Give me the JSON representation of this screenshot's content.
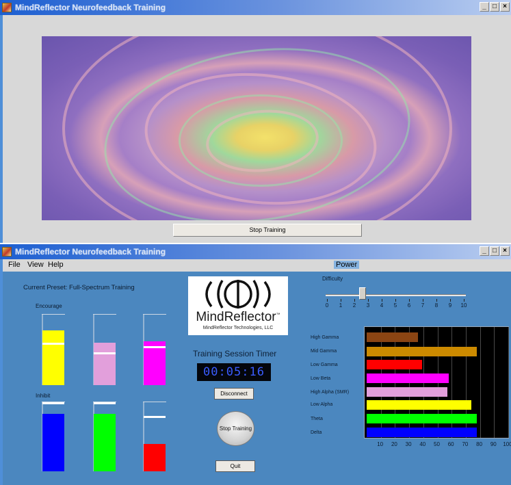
{
  "window_top": {
    "title": "MindReflector Neurofeedback Training",
    "stop_label": "Stop Training"
  },
  "window_bottom": {
    "title": "MindReflector Neurofeedback Training",
    "menu": [
      "File",
      "View",
      "Help"
    ],
    "power_label": "Power",
    "preset": "Current Preset: Full-Spectrum Training",
    "encourage_label": "Encourage",
    "inhibit_label": "Inhibit",
    "logo": {
      "name": "MindReflector",
      "tm": "™",
      "company": "MindReflector Technologies, LLC"
    },
    "timer_label": "Training Session Timer",
    "timer_value": "00:05:16",
    "disconnect_label": "Disconnect",
    "stop_label": "Stop Training",
    "quit_label": "Quit",
    "difficulty": {
      "label": "Difficulty",
      "value": 2.6,
      "ticks": [
        "0",
        "1",
        "2",
        "3",
        "4",
        "5",
        "6",
        "7",
        "8",
        "9",
        "10"
      ]
    },
    "encourage_meters": [
      {
        "color": "#ffff00",
        "fill": 0.78,
        "marker": 0.6
      },
      {
        "color": "#e29fdb",
        "fill": 0.6,
        "marker": 0.47
      },
      {
        "color": "#ff00ff",
        "fill": 0.62,
        "marker": 0.55
      }
    ],
    "inhibit_meters": [
      {
        "color": "#0000ff",
        "fill": 0.83,
        "marker": 1.0
      },
      {
        "color": "#00ff00",
        "fill": 0.83,
        "marker": 1.0
      },
      {
        "color": "#ff0000",
        "fill": 0.4,
        "marker": 0.8
      }
    ]
  },
  "chart_data": {
    "type": "bar",
    "orientation": "horizontal",
    "categories": [
      "High Gamma",
      "Mid Gamma",
      "Low Gamma",
      "Low Beta",
      "High Alpha (SMR)",
      "Low Alpha",
      "Theta",
      "Delta"
    ],
    "values": [
      36,
      78,
      39,
      58,
      57,
      74,
      78,
      78
    ],
    "colors": [
      "#8b4513",
      "#cc8a00",
      "#ff0000",
      "#ff00ff",
      "#e29fdb",
      "#ffff00",
      "#00ff00",
      "#0000ff"
    ],
    "xticks": [
      "10",
      "20",
      "30",
      "40",
      "50",
      "60",
      "70",
      "80",
      "90",
      "100"
    ],
    "xlim": [
      0,
      100
    ],
    "grid": true
  }
}
